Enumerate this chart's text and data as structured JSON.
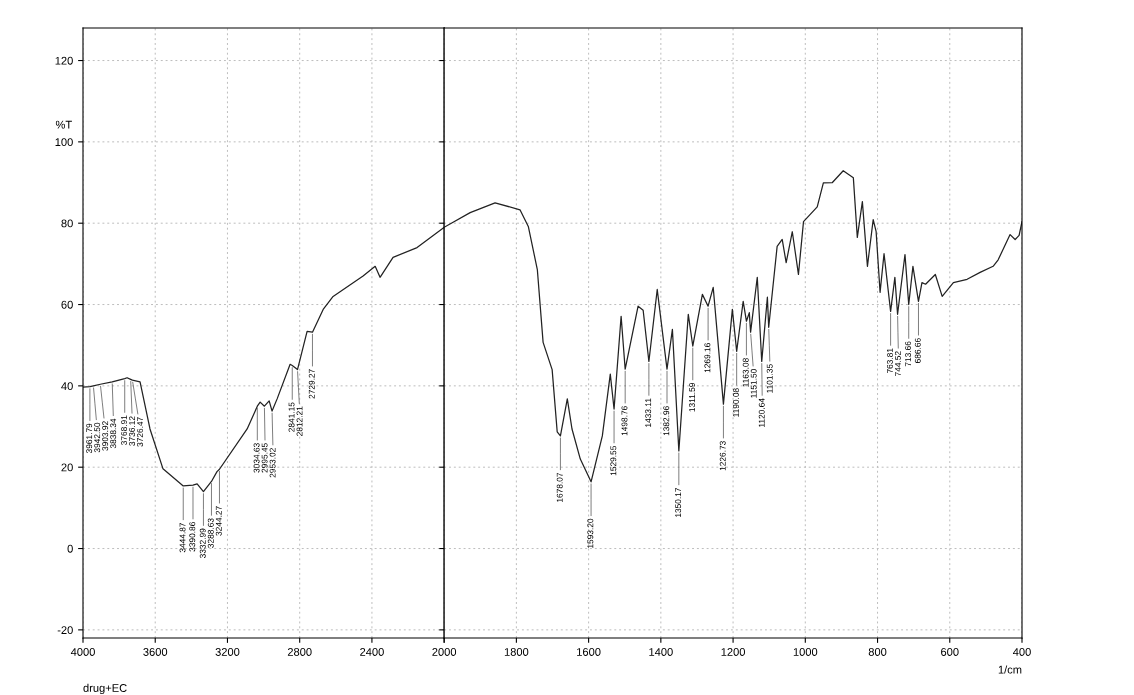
{
  "chart_data": [
    {
      "type": "line",
      "ylabel": "%T",
      "grid": true,
      "marker": "none",
      "line_style": "solid",
      "xlim": [
        4000,
        2000
      ],
      "xticks": [
        4000,
        3600,
        3200,
        2800,
        2400,
        {
          "value": 2000,
          "label": null
        }
      ],
      "ylim": [
        -22,
        128
      ],
      "yticks": [
        -20,
        0,
        20,
        40,
        60,
        80,
        100,
        120
      ],
      "series": [
        {
          "color": "#222222",
          "x": [
            4000,
            3961.79,
            3942.5,
            3903.92,
            3838.34,
            3768.91,
            3756,
            3736.12,
            3726.47,
            3684,
            3629,
            3557,
            3444.87,
            3390.86,
            3368,
            3332.99,
            3288.63,
            3258,
            3244.27,
            3091,
            3034.63,
            3019,
            2995.45,
            2969,
            2953.02,
            2925,
            2853,
            2841.15,
            2812.21,
            2759,
            2729.27,
            2670,
            2615,
            2449,
            2382,
            2355,
            2283,
            2150,
            2000
          ],
          "values": [
            39.7,
            39.8,
            40,
            40.4,
            41,
            41.8,
            42,
            41.6,
            41.4,
            41,
            29.4,
            19.6,
            15.4,
            15.6,
            15.9,
            14,
            16.5,
            18.9,
            19.5,
            29.4,
            35,
            36,
            35,
            36.3,
            33.8,
            36.8,
            45.3,
            45,
            44,
            53.4,
            53.2,
            58.8,
            62,
            67,
            69.4,
            66.7,
            71.6,
            74,
            79
          ]
        }
      ],
      "annotations": [
        {
          "text": "3961.79",
          "x": 3961.79,
          "y": 39.8
        },
        {
          "text": "3942.50",
          "x": 3942.5,
          "y": 40
        },
        {
          "text": "3903.92",
          "x": 3903.92,
          "y": 40.4
        },
        {
          "text": "3838.34",
          "x": 3838.34,
          "y": 41
        },
        {
          "text": "3768.91",
          "x": 3768.91,
          "y": 41.8
        },
        {
          "text": "3736.12",
          "x": 3736.12,
          "y": 41.6
        },
        {
          "text": "3726.47",
          "x": 3726.47,
          "y": 41.4
        },
        {
          "text": "3444.87",
          "x": 3444.87,
          "y": 15.4
        },
        {
          "text": "3390.86",
          "x": 3390.86,
          "y": 15.6
        },
        {
          "text": "3332.99",
          "x": 3332.99,
          "y": 14
        },
        {
          "text": "3288.63",
          "x": 3288.63,
          "y": 16.5
        },
        {
          "text": "3244.27",
          "x": 3244.27,
          "y": 19.5
        },
        {
          "text": "3034.63",
          "x": 3034.63,
          "y": 35
        },
        {
          "text": "2995.45",
          "x": 2995.45,
          "y": 35
        },
        {
          "text": "2953.02",
          "x": 2953.02,
          "y": 33.8
        },
        {
          "text": "2841.15",
          "x": 2841.15,
          "y": 45
        },
        {
          "text": "2812.21",
          "x": 2812.21,
          "y": 44
        },
        {
          "text": "2729.27",
          "x": 2729.27,
          "y": 53.2
        },
        "drug+EC"
      ]
    },
    {
      "type": "line",
      "xlabel": "1/cm",
      "grid": true,
      "marker": "none",
      "line_style": "solid",
      "tick_labels": "x",
      "xlim": [
        2000,
        400
      ],
      "xticks": [
        2000,
        1800,
        1600,
        1400,
        1200,
        1000,
        800,
        600,
        400
      ],
      "ylim": [
        -22,
        128
      ],
      "yticks": [
        -20,
        0,
        20,
        40,
        60,
        80,
        100,
        120
      ],
      "series": [
        {
          "color": "#222222",
          "x": [
            2000,
            1928,
            1859,
            1790,
            1767,
            1742,
            1726,
            1701,
            1687,
            1678.07,
            1659,
            1646,
            1623,
            1593.2,
            1562,
            1540,
            1529.55,
            1510,
            1498.76,
            1463,
            1449,
            1433.11,
            1410,
            1382.96,
            1368,
            1350.17,
            1324,
            1311.59,
            1285,
            1269.16,
            1255,
            1226.73,
            1202,
            1190.08,
            1172,
            1163.08,
            1155,
            1151.5,
            1133,
            1120.64,
            1105,
            1101.35,
            1078,
            1064,
            1053,
            1036,
            1019,
            1005,
            967,
            950,
            925,
            895,
            867,
            856,
            842,
            828,
            812,
            804,
            793,
            782,
            763.81,
            752,
            744.52,
            724,
            713.66,
            702,
            686.66,
            677,
            667,
            640,
            621,
            590,
            552,
            516,
            480,
            466,
            433,
            419,
            408,
            400
          ],
          "values": [
            79,
            82.6,
            85,
            83.3,
            79.2,
            68.6,
            50.7,
            44,
            28.7,
            27.7,
            36.8,
            29.4,
            22,
            16.4,
            27.7,
            42.9,
            34.3,
            57.1,
            44.1,
            59.6,
            58.6,
            46,
            63.7,
            44.1,
            53.9,
            24,
            57.6,
            49.8,
            62.5,
            59.6,
            64.2,
            35.5,
            58.8,
            48.5,
            60.8,
            55.9,
            58,
            53.2,
            66.7,
            46,
            61.8,
            54.4,
            74.3,
            76,
            70.3,
            77.9,
            67.4,
            80.4,
            84,
            89.9,
            90,
            92.9,
            91.2,
            76.5,
            85.3,
            69.4,
            80.9,
            78,
            63,
            72.5,
            58.3,
            66.7,
            57.6,
            72.3,
            60,
            69.4,
            60.8,
            65.4,
            65,
            67.4,
            62,
            65.4,
            66.2,
            67.9,
            69.4,
            71,
            77.2,
            76,
            77,
            80.4
          ]
        }
      ],
      "annotations": [
        {
          "text": "1678.07",
          "x": 1678.07,
          "y": 27.7
        },
        {
          "text": "1593.20",
          "x": 1593.2,
          "y": 16.4
        },
        {
          "text": "1529.55",
          "x": 1529.55,
          "y": 34.3
        },
        {
          "text": "1498.76",
          "x": 1498.76,
          "y": 44.1
        },
        {
          "text": "1433.11",
          "x": 1433.11,
          "y": 46
        },
        {
          "text": "1382.96",
          "x": 1382.96,
          "y": 44.1
        },
        {
          "text": "1350.17",
          "x": 1350.17,
          "y": 24
        },
        {
          "text": "1311.59",
          "x": 1311.59,
          "y": 49.8
        },
        {
          "text": "1269.16",
          "x": 1269.16,
          "y": 59.6
        },
        {
          "text": "1226.73",
          "x": 1226.73,
          "y": 35.5
        },
        {
          "text": "1190.08",
          "x": 1190.08,
          "y": 48.5
        },
        {
          "text": "1163.08",
          "x": 1163.08,
          "y": 55.9
        },
        {
          "text": "1151.50",
          "x": 1151.5,
          "y": 53.2
        },
        {
          "text": "1120.64",
          "x": 1120.64,
          "y": 46
        },
        {
          "text": "1101.35",
          "x": 1101.35,
          "y": 54.4
        },
        {
          "text": "763.81",
          "x": 763.81,
          "y": 58.3
        },
        {
          "text": "744.52",
          "x": 744.52,
          "y": 57.6
        },
        {
          "text": "713.66",
          "x": 713.66,
          "y": 60
        },
        {
          "text": "686.66",
          "x": 686.66,
          "y": 60.8
        }
      ]
    }
  ]
}
